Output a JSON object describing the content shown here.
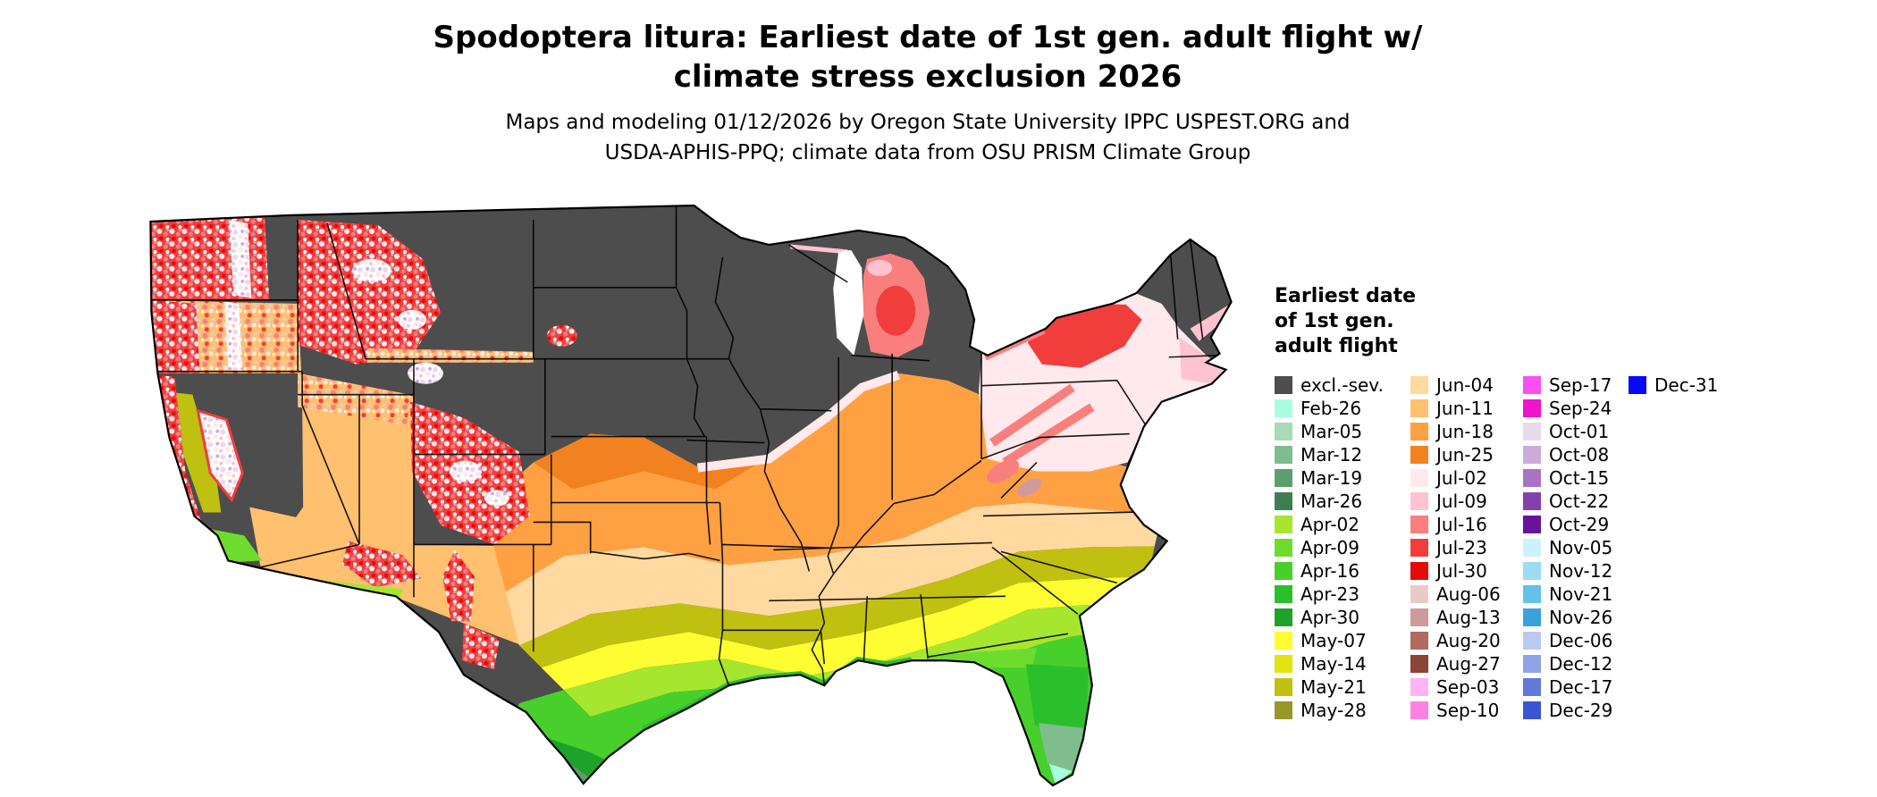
{
  "title": {
    "line1": "Spodoptera litura: Earliest date of 1st gen. adult flight w/",
    "line2": "climate stress exclusion 2026"
  },
  "subtitle": {
    "line1": "Maps and modeling 01/12/2026 by Oregon State University IPPC USPEST.ORG and",
    "line2": "USDA-APHIS-PPQ; climate data from OSU PRISM Climate Group"
  },
  "legend": {
    "title_lines": [
      "Earliest date",
      "of 1st gen.",
      "adult flight"
    ],
    "columns": [
      [
        "excl.-sev.",
        "Feb-26",
        "Mar-05",
        "Mar-12",
        "Mar-19",
        "Mar-26",
        "Apr-02",
        "Apr-09",
        "Apr-16",
        "Apr-23",
        "Apr-30",
        "May-07",
        "May-14",
        "May-21",
        "May-28"
      ],
      [
        "Jun-04",
        "Jun-11",
        "Jun-18",
        "Jun-25",
        "Jul-02",
        "Jul-09",
        "Jul-16",
        "Jul-23",
        "Jul-30",
        "Aug-06",
        "Aug-13",
        "Aug-20",
        "Aug-27",
        "Sep-03",
        "Sep-10"
      ],
      [
        "Sep-17",
        "Sep-24",
        "Oct-01",
        "Oct-08",
        "Oct-15",
        "Oct-22",
        "Oct-29",
        "Nov-05",
        "Nov-12",
        "Nov-21",
        "Nov-26",
        "Dec-06",
        "Dec-12",
        "Dec-17",
        "Dec-29"
      ],
      [
        "Dec-31"
      ]
    ]
  },
  "palette": {
    "excl.-sev.": "#4d4d4d",
    "Feb-26": "#a8ffe0",
    "Mar-05": "#a4dcb4",
    "Mar-12": "#7fbd8f",
    "Mar-19": "#5d9e6e",
    "Mar-26": "#3d7f50",
    "Apr-02": "#a6e62e",
    "Apr-09": "#6edc2d",
    "Apr-16": "#47cf2b",
    "Apr-23": "#2cbf2c",
    "Apr-30": "#1da32a",
    "May-07": "#fdfd32",
    "May-14": "#e3e312",
    "May-21": "#c0c010",
    "May-28": "#97972a",
    "Jun-04": "#ffd9a0",
    "Jun-11": "#ffc070",
    "Jun-18": "#ffa142",
    "Jun-25": "#f28220",
    "Jul-02": "#ffe9ec",
    "Jul-09": "#ffc2cf",
    "Jul-16": "#f97f7f",
    "Jul-23": "#f23d3d",
    "Jul-30": "#e60b0b",
    "Aug-06": "#e8caca",
    "Aug-13": "#cf9a9a",
    "Aug-20": "#b06a5f",
    "Aug-27": "#8c4436",
    "Sep-03": "#ffb3f2",
    "Sep-10": "#ff80e5",
    "Sep-17": "#fb4ff0",
    "Sep-24": "#ef14ce",
    "Oct-01": "#ead9ec",
    "Oct-08": "#cdabd9",
    "Oct-15": "#a873c4",
    "Oct-22": "#8440ad",
    "Oct-29": "#671499",
    "Nov-05": "#cdf2fd",
    "Nov-12": "#9cdcf2",
    "Nov-21": "#63c3e6",
    "Nov-26": "#39a2da",
    "Dec-06": "#b9c9ef",
    "Dec-12": "#8ea3e6",
    "Dec-17": "#5f7adb",
    "Dec-29": "#3b55d4",
    "Dec-31": "#0808ff",
    "water": "#ffffff",
    "border": "#000000"
  }
}
